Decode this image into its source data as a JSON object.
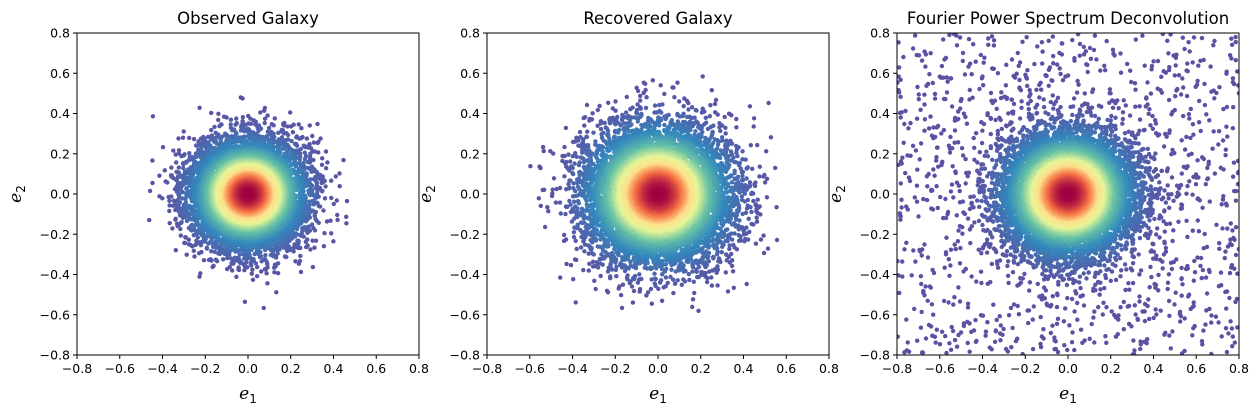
{
  "chart_data": [
    {
      "type": "scatter",
      "title": "Observed Galaxy",
      "xlabel": {
        "base": "e",
        "sub": "1"
      },
      "ylabel": {
        "base": "e",
        "sub": "2"
      },
      "xlim": [
        -0.8,
        0.8
      ],
      "ylim": [
        -0.8,
        0.8
      ],
      "ticks": [
        "−0.8",
        "−0.6",
        "−0.4",
        "−0.2",
        "0.0",
        "0.2",
        "0.4",
        "0.6",
        "0.8"
      ],
      "tick_values": [
        -0.8,
        -0.6,
        -0.4,
        -0.2,
        0.0,
        0.2,
        0.4,
        0.6,
        0.8
      ],
      "grid": false,
      "color_by_density": true,
      "colormap": "Spectral_r",
      "distribution": {
        "center": [
          0.0,
          0.0
        ],
        "sigma": 0.13,
        "points": 9000
      }
    },
    {
      "type": "scatter",
      "title": "Recovered Galaxy",
      "xlabel": {
        "base": "e",
        "sub": "1"
      },
      "ylabel": {
        "base": "e",
        "sub": "2"
      },
      "xlim": [
        -0.8,
        0.8
      ],
      "ylim": [
        -0.8,
        0.8
      ],
      "ticks": [
        "−0.8",
        "−0.6",
        "−0.4",
        "−0.2",
        "0.0",
        "0.2",
        "0.4",
        "0.6",
        "0.8"
      ],
      "tick_values": [
        -0.8,
        -0.6,
        -0.4,
        -0.2,
        0.0,
        0.2,
        0.4,
        0.6,
        0.8
      ],
      "grid": false,
      "color_by_density": true,
      "colormap": "Spectral_r",
      "distribution": {
        "center": [
          0.0,
          0.0
        ],
        "sigma": 0.165,
        "points": 9000
      }
    },
    {
      "type": "scatter",
      "title": "Fourier Power Spectrum Deconvolution",
      "xlabel": {
        "base": "e",
        "sub": "1"
      },
      "ylabel": {
        "base": "e",
        "sub": "2"
      },
      "xlim": [
        -0.8,
        0.8
      ],
      "ylim": [
        -0.8,
        0.8
      ],
      "ticks": [
        "−0.8",
        "−0.6",
        "−0.4",
        "−0.2",
        "0.0",
        "0.2",
        "0.4",
        "0.6",
        "0.8"
      ],
      "tick_values": [
        -0.8,
        -0.6,
        -0.4,
        -0.2,
        0.0,
        0.2,
        0.4,
        0.6,
        0.8
      ],
      "grid": false,
      "color_by_density": true,
      "colormap": "Spectral_r",
      "distribution": {
        "center": [
          0.0,
          0.0
        ],
        "sigma": 0.15,
        "points": 9000,
        "uniform_background_points": 1200
      }
    }
  ],
  "colors": {
    "low_density": "#5e4fa2",
    "mid_low": "#3288bd",
    "mid": "#66c2a5",
    "mid_high": "#e6f598",
    "center": "#fee08b",
    "high": "#f46d43",
    "peak": "#9e0142"
  }
}
